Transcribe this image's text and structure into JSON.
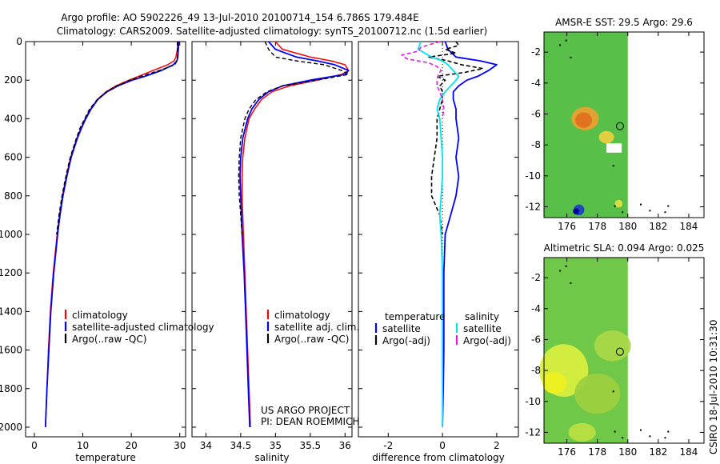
{
  "title_line1": "Argo profile: AO 5902226_49 13-Jul-2010 20100714_154 6.786S 179.484E",
  "title_line2": "Climatology: CARS2009. Satellite-adjusted climatology: synTS_20100712.nc (1.5d earlier)",
  "side_label": "CSIRO 18-Jul-2010 10:31:30",
  "project_line1": "US ARGO PROJECT",
  "project_line2": "PI: DEAN ROEMMICH",
  "chart_data": [
    {
      "type": "line",
      "id": "temperature",
      "xlabel": "temperature",
      "xlim": [
        -1.8,
        31.2
      ],
      "ylim": [
        0,
        2050
      ],
      "yreverse": true,
      "xticks": [
        0,
        10,
        20,
        30
      ],
      "xtick_labels": [
        "0",
        "10",
        "20",
        "30"
      ],
      "yticks": [
        0,
        200,
        400,
        600,
        800,
        1000,
        1200,
        1400,
        1600,
        1800,
        2000
      ],
      "ytick_labels": [
        "0",
        "200",
        "400",
        "600",
        "800",
        "1000",
        "1200",
        "1400",
        "1600",
        "1800",
        "2000"
      ],
      "legend": [
        {
          "label": "climatology",
          "color": "#ff0000"
        },
        {
          "label": "satellite-adjusted climatology",
          "color": "#0000ff"
        },
        {
          "label": "Argo(..raw -QC)",
          "color": "#000000"
        }
      ],
      "series": [
        {
          "name": "climatology",
          "color": "#ff0000",
          "dash": "",
          "width": 1.5,
          "depth": [
            0,
            40,
            80,
            100,
            120,
            150,
            180,
            200,
            230,
            260,
            300,
            350,
            400,
            450,
            500,
            600,
            700,
            800,
            900,
            1000,
            1200,
            1400,
            1600,
            1800,
            2000
          ],
          "values": [
            29.6,
            29.5,
            29.2,
            28.8,
            27.5,
            24.5,
            21.5,
            19.5,
            16.8,
            14.8,
            13.0,
            11.6,
            10.5,
            9.6,
            8.8,
            7.5,
            6.6,
            5.8,
            5.2,
            4.7,
            3.9,
            3.3,
            2.9,
            2.6,
            2.3
          ]
        },
        {
          "name": "satellite-adjusted climatology",
          "color": "#0000ff",
          "dash": "",
          "width": 1.8,
          "depth": [
            0,
            40,
            80,
            100,
            120,
            150,
            180,
            200,
            230,
            260,
            300,
            350,
            400,
            450,
            500,
            600,
            700,
            800,
            900,
            1000,
            1200,
            1400,
            1600,
            1800,
            2000
          ],
          "values": [
            29.8,
            29.7,
            29.6,
            29.4,
            28.7,
            26.2,
            22.8,
            20.2,
            17.2,
            15.0,
            13.1,
            11.7,
            10.6,
            9.7,
            8.9,
            7.6,
            6.7,
            5.9,
            5.3,
            4.8,
            4.0,
            3.4,
            3.0,
            2.6,
            2.3
          ]
        },
        {
          "name": "Argo(..raw -QC)",
          "color": "#000000",
          "dash": "5,3",
          "width": 1.4,
          "depth": [
            0,
            40,
            80,
            100,
            120,
            150,
            180,
            200,
            230,
            260,
            300,
            350,
            400,
            450,
            500,
            600,
            700,
            800,
            900,
            1000
          ],
          "values": [
            29.5,
            29.5,
            29.5,
            29.4,
            29.0,
            25.8,
            22.0,
            19.8,
            17.0,
            14.9,
            13.0,
            11.4,
            10.4,
            9.4,
            8.7,
            7.4,
            6.5,
            5.7,
            5.1,
            4.6
          ]
        }
      ]
    },
    {
      "type": "line",
      "id": "salinity",
      "xlabel": "salinity",
      "xlim": [
        33.8,
        36.1
      ],
      "ylim": [
        0,
        2050
      ],
      "yreverse": true,
      "xticks": [
        34,
        34.5,
        35,
        35.5,
        36
      ],
      "xtick_labels": [
        "34",
        "34.5",
        "35",
        "35.5",
        "36"
      ],
      "legend": [
        {
          "label": "climatology",
          "color": "#ff0000"
        },
        {
          "label": "satellite adj. clim.",
          "color": "#0000ff"
        },
        {
          "label": "Argo(..raw -QC)",
          "color": "#000000"
        }
      ],
      "series": [
        {
          "name": "climatology",
          "color": "#ff0000",
          "dash": "",
          "width": 1.5,
          "depth": [
            0,
            40,
            80,
            100,
            120,
            150,
            170,
            200,
            230,
            260,
            300,
            350,
            400,
            500,
            600,
            700,
            800,
            1000,
            1200,
            1400,
            1600,
            1800,
            2000
          ],
          "values": [
            35.0,
            35.1,
            35.5,
            35.8,
            36.0,
            36.05,
            35.95,
            35.6,
            35.2,
            34.95,
            34.8,
            34.7,
            34.62,
            34.56,
            34.53,
            34.52,
            34.52,
            34.54,
            34.56,
            34.58,
            34.6,
            34.62,
            34.64
          ]
        },
        {
          "name": "satellite adj. clim.",
          "color": "#0000ff",
          "dash": "",
          "width": 1.8,
          "depth": [
            0,
            40,
            80,
            100,
            120,
            150,
            170,
            200,
            230,
            260,
            300,
            350,
            400,
            500,
            600,
            700,
            800,
            1000,
            1200,
            1400,
            1600,
            1800,
            2000
          ],
          "values": [
            34.9,
            35.0,
            35.3,
            35.6,
            35.85,
            36.05,
            36.0,
            35.5,
            35.1,
            34.9,
            34.76,
            34.66,
            34.6,
            34.53,
            34.5,
            34.49,
            34.5,
            34.52,
            34.55,
            34.57,
            34.59,
            34.61,
            34.63
          ]
        },
        {
          "name": "Argo(..raw -QC)",
          "color": "#000000",
          "dash": "5,3",
          "width": 1.4,
          "depth": [
            0,
            40,
            80,
            100,
            120,
            150,
            170,
            200,
            230,
            260,
            300,
            350,
            400,
            500,
            600,
            700,
            800,
            900,
            1000
          ],
          "values": [
            34.85,
            34.9,
            35.0,
            35.3,
            35.7,
            35.95,
            36.05,
            35.6,
            35.1,
            34.88,
            34.72,
            34.62,
            34.56,
            34.5,
            34.48,
            34.47,
            34.48,
            34.5,
            34.52
          ]
        }
      ]
    },
    {
      "type": "line",
      "id": "difference",
      "xlabel": "difference from climatology",
      "xlim": [
        -3.1,
        2.8
      ],
      "ylim": [
        0,
        2050
      ],
      "yreverse": true,
      "xticks": [
        -2,
        0,
        2
      ],
      "xtick_labels": [
        "-2",
        "0",
        "2"
      ],
      "legend_headers": [
        "temperature",
        "salinity"
      ],
      "legend": [
        {
          "label": "satellite",
          "color": "#0000ff",
          "column": "left"
        },
        {
          "label": "Argo(-adj)",
          "color": "#000000",
          "column": "left"
        },
        {
          "label": "satellite",
          "color": "#00e5ee",
          "column": "right"
        },
        {
          "label": "Argo(-adj)",
          "color": "#e020e0",
          "column": "right"
        }
      ],
      "series": [
        {
          "name": "zero line",
          "color": "#000000",
          "dash": "1,3",
          "width": 1,
          "depth": [
            0,
            2000
          ],
          "values": [
            0,
            0
          ]
        },
        {
          "name": "temperature satellite",
          "color": "#0000ff",
          "dash": "",
          "width": 1.8,
          "depth": [
            0,
            40,
            80,
            100,
            120,
            150,
            180,
            200,
            230,
            260,
            300,
            350,
            400,
            500,
            600,
            700,
            800,
            900,
            1000,
            1200,
            1400,
            1600,
            1800,
            2000
          ],
          "values": [
            0.1,
            0.2,
            0.5,
            1.4,
            2.0,
            1.7,
            1.3,
            0.9,
            0.6,
            0.4,
            0.4,
            0.5,
            0.5,
            0.6,
            0.5,
            0.6,
            0.5,
            0.3,
            0.1,
            0.05,
            0.05,
            0.05,
            0.03,
            0.0
          ]
        },
        {
          "name": "temperature Argo",
          "color": "#000000",
          "dash": "5,3",
          "width": 1.6,
          "depth": [
            0,
            20,
            40,
            60,
            80,
            100,
            120,
            140,
            160,
            180,
            200,
            230,
            260,
            300,
            350,
            400,
            500,
            600,
            700,
            800,
            900,
            1000
          ],
          "values": [
            0.5,
            0.6,
            0.1,
            0.5,
            -0.5,
            0.2,
            0.7,
            1.5,
            0.8,
            -0.2,
            0.1,
            -0.1,
            0.0,
            0.0,
            -0.1,
            -0.2,
            -0.2,
            -0.3,
            -0.4,
            -0.4,
            -0.1,
            0.0
          ]
        },
        {
          "name": "salinity satellite",
          "color": "#00e5ee",
          "dash": "",
          "width": 1.8,
          "depth": [
            0,
            40,
            80,
            100,
            120,
            150,
            180,
            200,
            230,
            260,
            300,
            350,
            400,
            500,
            600,
            700,
            800,
            900,
            1000,
            1200,
            1400,
            1600,
            1800,
            2000
          ],
          "values": [
            -0.8,
            -0.9,
            -0.4,
            0.0,
            0.2,
            0.4,
            0.6,
            0.5,
            0.3,
            0.1,
            -0.1,
            -0.2,
            -0.1,
            -0.05,
            0.0,
            0.0,
            -0.05,
            -0.1,
            -0.05,
            0.0,
            0.0,
            0.0,
            0.0,
            0.0
          ]
        },
        {
          "name": "salinity Argo",
          "color": "#e020e0",
          "dash": "5,3",
          "width": 1.6,
          "depth": [
            0,
            30,
            50,
            70,
            90,
            110,
            130,
            150,
            170,
            200,
            230,
            260,
            300,
            350,
            400
          ],
          "values": [
            -0.1,
            -0.8,
            -0.9,
            -1.5,
            -1.3,
            -0.5,
            -0.2,
            -0.05,
            -0.15,
            -0.2,
            -0.2,
            -0.1,
            0.0,
            0.05,
            0.0
          ]
        }
      ]
    },
    {
      "type": "heatmap",
      "id": "sst-map",
      "title": "AMSR-E SST: 29.5 Argo: 29.6",
      "xlim": [
        174.5,
        185
      ],
      "ylim": [
        -12.7,
        -0.7
      ],
      "xticks": [
        176,
        178,
        180,
        182,
        184
      ],
      "xtick_labels": [
        "176",
        "178",
        "180",
        "182",
        "184"
      ],
      "yticks": [
        -2,
        -4,
        -6,
        -8,
        -10,
        -12
      ],
      "ytick_labels": [
        "-2",
        "-4",
        "-6",
        "-8",
        "-10",
        "-12"
      ],
      "data_xmax": 180,
      "argo_position": [
        179.484,
        -6.786
      ]
    },
    {
      "type": "heatmap",
      "id": "sla-map",
      "title": "Altimetric SLA: 0.094 Argo: 0.025",
      "xlim": [
        174.5,
        185
      ],
      "ylim": [
        -12.7,
        -0.7
      ],
      "xticks": [
        176,
        178,
        180,
        182,
        184
      ],
      "xtick_labels": [
        "176",
        "178",
        "180",
        "182",
        "184"
      ],
      "yticks": [
        -2,
        -4,
        -6,
        -8,
        -10,
        -12
      ],
      "ytick_labels": [
        "-2",
        "-4",
        "-6",
        "-8",
        "-10",
        "-12"
      ],
      "data_xmax": 180,
      "argo_position": [
        179.484,
        -6.786
      ]
    }
  ]
}
